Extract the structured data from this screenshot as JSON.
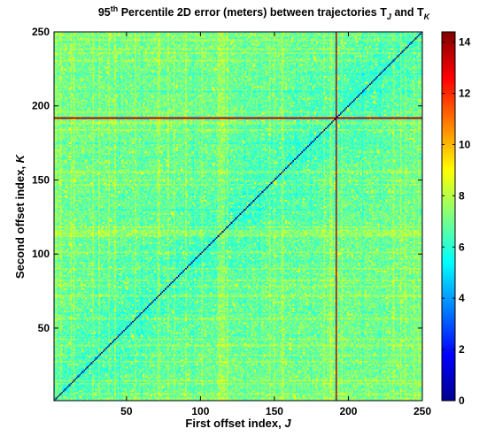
{
  "chart_data": {
    "type": "heatmap",
    "title": {
      "prefix": "95",
      "sup": "th",
      "middle": " Percentile 2D error (meters) between trajectories T",
      "sub1": "J",
      "and": " and T",
      "sub2": "K"
    },
    "xlabel": {
      "text": "First offset index, ",
      "italic": "J"
    },
    "ylabel": {
      "text": "Second offset index, ",
      "italic": "K"
    },
    "xlim": [
      1,
      250
    ],
    "ylim": [
      1,
      250
    ],
    "xticks": [
      50,
      100,
      150,
      200,
      250
    ],
    "yticks": [
      50,
      100,
      150,
      200,
      250
    ],
    "xtick_labels": [
      "50",
      "100",
      "150",
      "200",
      "250"
    ],
    "ytick_labels": [
      "50",
      "100",
      "150",
      "200",
      "250"
    ],
    "colorbar": {
      "clim": [
        0,
        14.4
      ],
      "ticks": [
        0,
        2,
        4,
        6,
        8,
        10,
        12,
        14
      ],
      "tick_labels": [
        "0",
        "2",
        "4",
        "6",
        "8",
        "10",
        "12",
        "14"
      ],
      "colormap": "jet"
    },
    "grid": "off",
    "n": 250,
    "typical_value": 7,
    "diagonal_value": 0,
    "outlier_index": 192,
    "outlier_value": 13.5,
    "elevated_indices": [
      2,
      5,
      12,
      14,
      27,
      31,
      38,
      42,
      56,
      71,
      72,
      78,
      82,
      90,
      101,
      112,
      113,
      114,
      115,
      116,
      118,
      147,
      150,
      155,
      156,
      184,
      188,
      189,
      196,
      231,
      236,
      239,
      245,
      248
    ],
    "elevated_value": 8.4,
    "lower_indices": [
      30,
      45,
      60,
      95,
      130,
      140,
      165,
      175,
      210,
      222
    ],
    "lower_value": 6.2
  }
}
